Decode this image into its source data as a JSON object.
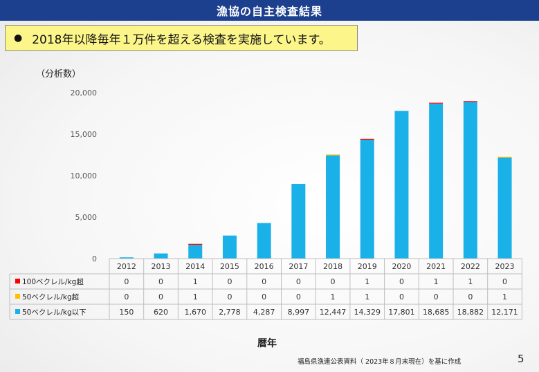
{
  "title": "漁協の自主検査結果",
  "callout": "2018年以降毎年１万件を超える検査を実施しています。",
  "callout_bullet": "●",
  "y_unit": "（分析数）",
  "x_axis_title": "暦年",
  "source": "福島県漁連公表資料（ 2023年８月末現在）を基に作成",
  "page_number": "5",
  "colors": {
    "title_bg": "#1c3f8e",
    "callout_bg": "#fbf58a",
    "over100": "#ff0000",
    "over50": "#ffc000",
    "under50": "#1ab0e8"
  },
  "chart_data": {
    "type": "bar",
    "stacked": true,
    "categories": [
      "2012",
      "2013",
      "2014",
      "2015",
      "2016",
      "2017",
      "2018",
      "2019",
      "2020",
      "2021",
      "2022",
      "2023"
    ],
    "series": [
      {
        "name": "50ベクレル/kg以下",
        "color": "#1ab0e8",
        "values": [
          150,
          620,
          1670,
          2778,
          4287,
          8997,
          12447,
          14329,
          17801,
          18685,
          18882,
          12171
        ]
      },
      {
        "name": "50ベクレル/kg超",
        "color": "#ffc000",
        "values": [
          0,
          0,
          1,
          0,
          0,
          0,
          1,
          1,
          0,
          0,
          0,
          1
        ]
      },
      {
        "name": "100ベクレル/kg超",
        "color": "#ff0000",
        "values": [
          0,
          0,
          1,
          0,
          0,
          0,
          0,
          1,
          0,
          1,
          1,
          0
        ]
      }
    ],
    "table_rows": [
      {
        "label": "100ベクレル/kg超",
        "color": "#ff0000",
        "values": [
          "0",
          "0",
          "1",
          "0",
          "0",
          "0",
          "0",
          "1",
          "0",
          "1",
          "1",
          "0"
        ]
      },
      {
        "label": "50ベクレル/kg超",
        "color": "#ffc000",
        "values": [
          "0",
          "0",
          "1",
          "0",
          "0",
          "0",
          "1",
          "1",
          "0",
          "0",
          "0",
          "1"
        ]
      },
      {
        "label": "50ベクレル/kg以下",
        "color": "#1ab0e8",
        "values": [
          "150",
          "620",
          "1,670",
          "2,778",
          "4,287",
          "8,997",
          "12,447",
          "14,329",
          "17,801",
          "18,685",
          "18,882",
          "12,171"
        ]
      }
    ],
    "yticks": [
      "0",
      "5,000",
      "10,000",
      "15,000",
      "20,000"
    ],
    "ytick_values": [
      0,
      5000,
      10000,
      15000,
      20000
    ],
    "ylim": [
      0,
      20000
    ],
    "grid": false,
    "legend": "data-table"
  }
}
